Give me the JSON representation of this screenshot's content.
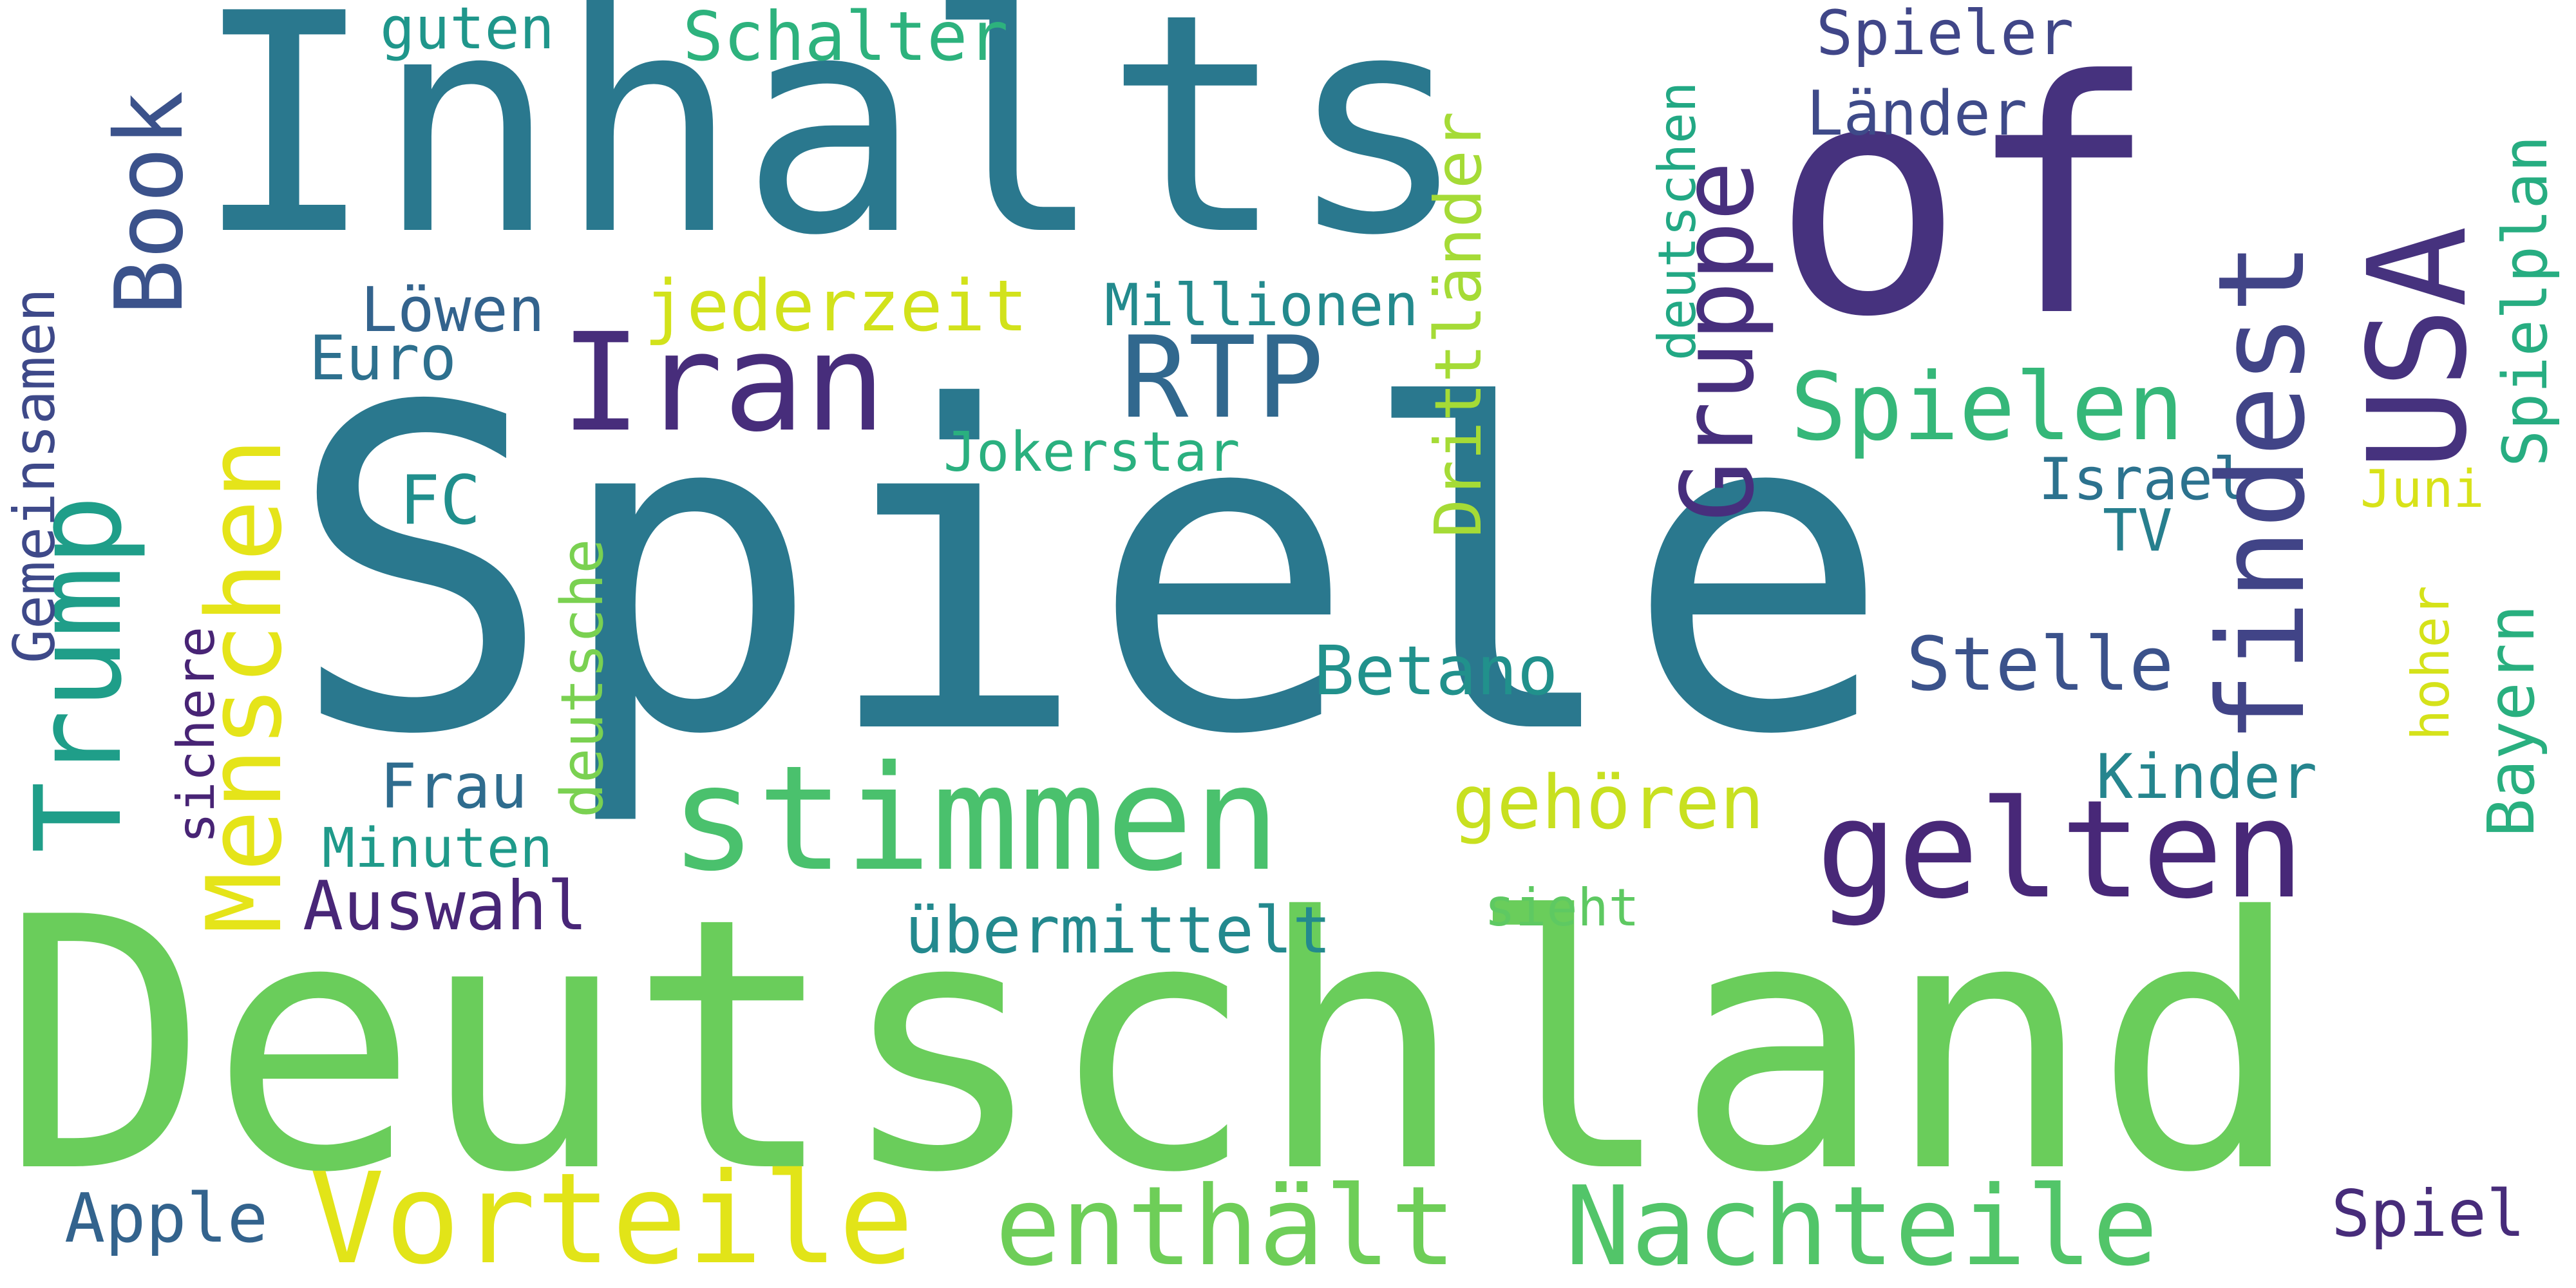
{
  "words": [
    {
      "text": "Deutschland",
      "color": "#6acd5b",
      "orientation": "horizontal"
    },
    {
      "text": "Spiele",
      "color": "#2a788e",
      "orientation": "horizontal"
    },
    {
      "text": "Inhalts",
      "color": "#2a788e",
      "orientation": "horizontal"
    },
    {
      "text": "of",
      "color": "#46327e",
      "orientation": "horizontal"
    },
    {
      "text": "stimmen",
      "color": "#4ac16d",
      "orientation": "horizontal"
    },
    {
      "text": "gelten",
      "color": "#482878",
      "orientation": "horizontal"
    },
    {
      "text": "Vorteile",
      "color": "#e2e418",
      "orientation": "horizontal"
    },
    {
      "text": "enthält",
      "color": "#6ece58",
      "orientation": "horizontal"
    },
    {
      "text": "Nachteile",
      "color": "#52c569",
      "orientation": "horizontal"
    },
    {
      "text": "Iran",
      "color": "#472d7b",
      "orientation": "horizontal"
    },
    {
      "text": "RTP",
      "color": "#31688e",
      "orientation": "horizontal"
    },
    {
      "text": "Spielen",
      "color": "#35b779",
      "orientation": "horizontal"
    },
    {
      "text": "Stelle",
      "color": "#3b528b",
      "orientation": "horizontal"
    },
    {
      "text": "Betano",
      "color": "#21918c",
      "orientation": "horizontal"
    },
    {
      "text": "gehören",
      "color": "#c8e020",
      "orientation": "horizontal"
    },
    {
      "text": "Auswahl",
      "color": "#482677",
      "orientation": "horizontal"
    },
    {
      "text": "übermittelt",
      "color": "#23898e",
      "orientation": "horizontal"
    },
    {
      "text": "Schalter",
      "color": "#2db27d",
      "orientation": "horizontal"
    },
    {
      "text": "Spieler",
      "color": "#404688",
      "orientation": "horizontal"
    },
    {
      "text": "Länder",
      "color": "#3e4a89",
      "orientation": "horizontal"
    },
    {
      "text": "guten",
      "color": "#1f968b",
      "orientation": "horizontal"
    },
    {
      "text": "jederzeit",
      "color": "#d2e21b",
      "orientation": "horizontal"
    },
    {
      "text": "Millionen",
      "color": "#238a8d",
      "orientation": "horizontal"
    },
    {
      "text": "Löwen",
      "color": "#33638d",
      "orientation": "horizontal"
    },
    {
      "text": "Euro",
      "color": "#2d708e",
      "orientation": "horizontal"
    },
    {
      "text": "Jokerstar",
      "color": "#2ab07f",
      "orientation": "horizontal"
    },
    {
      "text": "FC",
      "color": "#218f8d",
      "orientation": "horizontal"
    },
    {
      "text": "Israel",
      "color": "#2c728e",
      "orientation": "horizontal"
    },
    {
      "text": "TV",
      "color": "#277f8e",
      "orientation": "horizontal"
    },
    {
      "text": "Juni",
      "color": "#d8e219",
      "orientation": "horizontal"
    },
    {
      "text": "Kinder",
      "color": "#25858e",
      "orientation": "horizontal"
    },
    {
      "text": "Frau",
      "color": "#2f6c8e",
      "orientation": "horizontal"
    },
    {
      "text": "Minuten",
      "color": "#1f9a8a",
      "orientation": "horizontal"
    },
    {
      "text": "sieht",
      "color": "#5ec962",
      "orientation": "horizontal"
    },
    {
      "text": "Apple",
      "color": "#33638d",
      "orientation": "horizontal"
    },
    {
      "text": "Spiel",
      "color": "#472c7a",
      "orientation": "horizontal"
    },
    {
      "text": "Trump",
      "color": "#1f9e89",
      "orientation": "vertical"
    },
    {
      "text": "Book",
      "color": "#3b528b",
      "orientation": "vertical"
    },
    {
      "text": "Menschen",
      "color": "#e5e419",
      "orientation": "vertical"
    },
    {
      "text": "Gemeinsamen",
      "color": "#3e4989",
      "orientation": "vertical"
    },
    {
      "text": "sichere",
      "color": "#482475",
      "orientation": "vertical"
    },
    {
      "text": "deutsche",
      "color": "#7ad151",
      "orientation": "vertical"
    },
    {
      "text": "Drittländer",
      "color": "#a5db36",
      "orientation": "vertical"
    },
    {
      "text": "deutschen",
      "color": "#22a884",
      "orientation": "vertical"
    },
    {
      "text": "Gruppe",
      "color": "#472f7d",
      "orientation": "vertical"
    },
    {
      "text": "findest",
      "color": "#414487",
      "orientation": "vertical"
    },
    {
      "text": "USA",
      "color": "#46327e",
      "orientation": "vertical"
    },
    {
      "text": "Spielplan",
      "color": "#27ad81",
      "orientation": "vertical"
    },
    {
      "text": "hoher",
      "color": "#d5e21a",
      "orientation": "vertical"
    },
    {
      "text": "Bayern",
      "color": "#29af7f",
      "orientation": "vertical"
    }
  ]
}
